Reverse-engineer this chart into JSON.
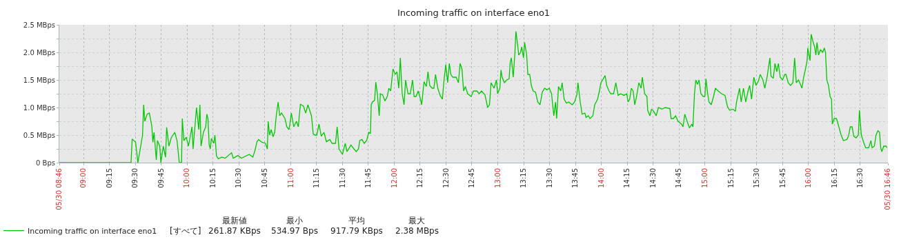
{
  "chart_data": {
    "type": "line",
    "title": "Incoming traffic on interface eno1",
    "series": [
      {
        "name": "Incoming traffic on interface eno1",
        "color": "#00c800",
        "x": [
          8.7667,
          9.459,
          9.47,
          9.503,
          9.525,
          9.548,
          9.57,
          9.581,
          9.592,
          9.614,
          9.636,
          9.659,
          9.67,
          9.681,
          9.703,
          9.714,
          9.736,
          9.747,
          9.77,
          9.792,
          9.803,
          9.825,
          9.847,
          9.881,
          9.903,
          9.925,
          9.947,
          9.954,
          9.969,
          9.992,
          10.014,
          10.047,
          10.058,
          10.091,
          10.113,
          10.124,
          10.135,
          10.158,
          10.18,
          10.191,
          10.202,
          10.213,
          10.224,
          10.235,
          10.258,
          10.269,
          10.284,
          10.302,
          10.335,
          10.368,
          10.43,
          10.446,
          10.491,
          10.524,
          10.601,
          10.635,
          10.657,
          10.675,
          10.69,
          10.723,
          10.757,
          10.775,
          10.783,
          10.797,
          10.812,
          10.83,
          10.846,
          10.861,
          10.879,
          10.894,
          10.912,
          10.945,
          10.963,
          10.985,
          11.007,
          11.03,
          11.056,
          11.074,
          11.094,
          11.123,
          11.145,
          11.167,
          11.201,
          11.218,
          11.234,
          11.252,
          11.274,
          11.296,
          11.322,
          11.345,
          11.378,
          11.4,
          11.433,
          11.449,
          11.467,
          11.5,
          11.527,
          11.544,
          11.582,
          11.611,
          11.633,
          11.655,
          11.667,
          11.689,
          11.711,
          11.733,
          11.755,
          11.771,
          11.778,
          11.789,
          11.811,
          11.822,
          11.837,
          11.855,
          11.866,
          11.888,
          11.911,
          11.933,
          11.948,
          11.966,
          11.988,
          12.01,
          12.026,
          12.044,
          12.059,
          12.077,
          12.095,
          12.11,
          12.133,
          12.155,
          12.177,
          12.192,
          12.21,
          12.232,
          12.254,
          12.265,
          12.288,
          12.31,
          12.326,
          12.343,
          12.366,
          12.383,
          12.399,
          12.421,
          12.443,
          12.465,
          12.481,
          12.498,
          12.516,
          12.532,
          12.547,
          12.565,
          12.598,
          12.62,
          12.636,
          12.654,
          12.67,
          12.687,
          12.709,
          12.743,
          12.765,
          12.798,
          12.82,
          12.843,
          12.876,
          12.902,
          12.92,
          12.935,
          12.964,
          12.987,
          12.998,
          13.02,
          13.031,
          13.042,
          13.064,
          13.086,
          13.109,
          13.12,
          13.131,
          13.149,
          13.164,
          13.175,
          13.191,
          13.202,
          13.22,
          13.231,
          13.248,
          13.259,
          13.279,
          13.29,
          13.308,
          13.324,
          13.341,
          13.364,
          13.386,
          13.408,
          13.43,
          13.452,
          13.475,
          13.497,
          13.519,
          13.541,
          13.557,
          13.568,
          13.586,
          13.608,
          13.621,
          13.641,
          13.663,
          13.685,
          13.719,
          13.741,
          13.763,
          13.774,
          13.796,
          13.814,
          13.841,
          13.852,
          13.874,
          13.89,
          13.918,
          13.936,
          13.963,
          13.981,
          13.996,
          14.018,
          14.036,
          14.052,
          14.074,
          14.092,
          14.118,
          14.14,
          14.162,
          14.185,
          14.218,
          14.245,
          14.258,
          14.273,
          14.289,
          14.307,
          14.322,
          14.34,
          14.362,
          14.384,
          14.395,
          14.418,
          14.44,
          14.447,
          14.469,
          14.484,
          14.506,
          14.529,
          14.551,
          14.584,
          14.618,
          14.662,
          14.673,
          14.695,
          14.717,
          14.74,
          14.773,
          14.788,
          14.806,
          14.828,
          14.85,
          14.873,
          14.884,
          14.899,
          14.912,
          14.928,
          14.943,
          14.961,
          14.983,
          14.999,
          15.01,
          15.023,
          15.039,
          15.061,
          15.083,
          15.101,
          15.128,
          15.161,
          15.194,
          15.217,
          15.239,
          15.272,
          15.294,
          15.305,
          15.334,
          15.35,
          15.372,
          15.394,
          15.416,
          15.432,
          15.45,
          15.472,
          15.494,
          15.516,
          15.534,
          15.56,
          15.578,
          15.6,
          15.627,
          15.638,
          15.66,
          15.676,
          15.694,
          15.709,
          15.727,
          15.749,
          15.771,
          15.782,
          15.804,
          15.826,
          15.849,
          15.866,
          15.882,
          15.904,
          15.926,
          15.937,
          15.953,
          15.971,
          15.986,
          15.993,
          16.015,
          16.026,
          16.042,
          16.059,
          16.071,
          16.082,
          16.097,
          16.115,
          16.137,
          16.153,
          16.164,
          16.177,
          16.193,
          16.208,
          16.222,
          16.23,
          16.248,
          16.27,
          16.293,
          16.315,
          16.337,
          16.37,
          16.386,
          16.403,
          16.421,
          16.437,
          16.459,
          16.481,
          16.492,
          16.51,
          16.536,
          16.552,
          16.581,
          16.603,
          16.614,
          16.636,
          16.652,
          16.67,
          16.686,
          16.697,
          16.708,
          16.726,
          16.748,
          16.759
        ],
        "values": [
          0,
          0,
          0.43,
          0.37,
          0,
          0.25,
          0.5,
          1.05,
          0.75,
          0.88,
          0.9,
          0.67,
          0.37,
          0.55,
          0.05,
          0.4,
          0.3,
          0,
          0.3,
          0.1,
          0.64,
          0.3,
          0.45,
          0.55,
          0.4,
          0,
          0,
          0.8,
          0.4,
          0.46,
          0.3,
          0.65,
          0.25,
          1.0,
          0.6,
          1.05,
          0.3,
          0.55,
          0.65,
          0.88,
          0.8,
          0.33,
          0.25,
          0.44,
          0.35,
          0.5,
          0.12,
          0.07,
          0.1,
          0.08,
          0.18,
          0.08,
          0.13,
          0.08,
          0.15,
          0.1,
          0.23,
          0.38,
          0.42,
          0.37,
          0.35,
          0.25,
          0.75,
          0.5,
          0.6,
          0.47,
          0.55,
          0.85,
          1.1,
          0.85,
          0.9,
          0.8,
          0.65,
          0.6,
          0.9,
          0.65,
          0.75,
          0.65,
          1.06,
          1.03,
          0.9,
          1.05,
          0.85,
          0.52,
          0.5,
          0.5,
          0.7,
          0.48,
          0.55,
          0.38,
          0.42,
          0.35,
          0.35,
          0.65,
          0.25,
          0.15,
          0.35,
          0.2,
          0.32,
          0.25,
          0.2,
          0.25,
          0.4,
          0.42,
          0.35,
          0.4,
          0.55,
          0.53,
          1.05,
          1.1,
          1.13,
          1.46,
          1.25,
          0.85,
          1.25,
          1.23,
          1.12,
          1.2,
          1.35,
          1.3,
          1.7,
          1.6,
          1.65,
          1.35,
          1.9,
          1.25,
          1.05,
          1.5,
          1.25,
          1.25,
          1.5,
          1.2,
          1.2,
          1.3,
          1.15,
          1.05,
          1.47,
          1.38,
          1.65,
          1.4,
          1.35,
          1.35,
          1.6,
          1.35,
          1.22,
          1.15,
          1.5,
          1.78,
          1.45,
          1.8,
          1.6,
          1.55,
          1.55,
          1.45,
          1.8,
          1.7,
          1.3,
          1.38,
          1.25,
          1.2,
          1.3,
          1.3,
          1.25,
          1.3,
          1.23,
          1.0,
          1.05,
          1.45,
          1.35,
          1.5,
          1.25,
          1.35,
          1.68,
          1.55,
          1.45,
          1.5,
          1.52,
          1.82,
          1.9,
          1.55,
          1.95,
          2.38,
          2.15,
          1.95,
          2.0,
          2.1,
          1.9,
          2.18,
          1.95,
          1.6,
          1.6,
          1.4,
          1.3,
          1.28,
          1.1,
          1.05,
          1.28,
          1.35,
          1.32,
          1.35,
          1.25,
          0.85,
          1.1,
          0.8,
          1.38,
          1.3,
          1.45,
          1.15,
          1.08,
          1.1,
          1.05,
          1.1,
          1.23,
          1.45,
          1.1,
          0.88,
          0.9,
          0.82,
          0.85,
          0.8,
          0.85,
          1.05,
          1.15,
          1.3,
          1.45,
          1.52,
          1.58,
          1.4,
          1.3,
          1.25,
          1.25,
          1.45,
          1.22,
          1.25,
          1.22,
          1.25,
          1.1,
          1.15,
          1.35,
          1.3,
          1.05,
          1.2,
          1.45,
          1.35,
          1.55,
          1.25,
          1.2,
          0.95,
          0.85,
          0.97,
          0.93,
          0.85,
          1.0,
          0.97,
          1.0,
          0.98,
          0.8,
          0.8,
          0.85,
          0.75,
          0.7,
          0.65,
          0.88,
          0.75,
          0.63,
          0.7,
          0.65,
          1.25,
          1.5,
          1.42,
          1.5,
          1.25,
          1.2,
          1.2,
          1.52,
          1.3,
          1.1,
          1.05,
          1.2,
          1.35,
          1.3,
          1.25,
          1.22,
          1.02,
          0.95,
          0.97,
          0.93,
          1.1,
          1.35,
          1.1,
          1.35,
          1.1,
          1.3,
          1.4,
          1.15,
          1.55,
          1.4,
          1.48,
          1.6,
          1.5,
          1.35,
          1.55,
          1.9,
          1.57,
          1.53,
          1.8,
          1.65,
          1.8,
          1.55,
          1.5,
          1.6,
          1.6,
          1.45,
          1.4,
          1.45,
          1.9,
          1.45,
          1.5,
          1.4,
          1.35,
          1.55,
          1.7,
          1.85,
          2.08,
          1.85,
          2.33,
          2.2,
          2.1,
          1.95,
          2.18,
          1.95,
          2.05,
          2.0,
          2.08,
          2.0,
          1.5,
          1.4,
          1.2,
          1.15,
          0.7,
          0.8,
          0.8,
          0.65,
          0.5,
          0.4,
          0.42,
          0.48,
          0.65,
          0.65,
          0.48,
          0.45,
          0.5,
          0.95,
          0.5,
          0.35,
          0.27,
          0.27,
          0.4,
          0.27,
          0.3,
          0.5,
          0.58,
          0.55,
          0.27,
          0.2,
          0.3,
          0.3,
          0.27
        ]
      }
    ],
    "xlim": [
      8.7667,
      16.7667
    ],
    "xticks": [
      {
        "value": 8.7667,
        "label": "05/30 08:46"
      },
      {
        "value": 9,
        "label": "09:00"
      },
      {
        "value": 9.25,
        "label": "09:15"
      },
      {
        "value": 9.5,
        "label": "09:30"
      },
      {
        "value": 9.75,
        "label": "09:45"
      },
      {
        "value": 10,
        "label": "10:00"
      },
      {
        "value": 10.25,
        "label": "10:15"
      },
      {
        "value": 10.5,
        "label": "10:30"
      },
      {
        "value": 10.75,
        "label": "10:45"
      },
      {
        "value": 11,
        "label": "11:00"
      },
      {
        "value": 11.25,
        "label": "11:15"
      },
      {
        "value": 11.5,
        "label": "11:30"
      },
      {
        "value": 11.75,
        "label": "11:45"
      },
      {
        "value": 12,
        "label": "12:00"
      },
      {
        "value": 12.25,
        "label": "12:15"
      },
      {
        "value": 12.5,
        "label": "12:30"
      },
      {
        "value": 12.75,
        "label": "12:45"
      },
      {
        "value": 13,
        "label": "13:00"
      },
      {
        "value": 13.25,
        "label": "13:15"
      },
      {
        "value": 13.5,
        "label": "13:30"
      },
      {
        "value": 13.75,
        "label": "13:45"
      },
      {
        "value": 14,
        "label": "14:00"
      },
      {
        "value": 14.25,
        "label": "14:15"
      },
      {
        "value": 14.5,
        "label": "14:30"
      },
      {
        "value": 14.75,
        "label": "14:45"
      },
      {
        "value": 15,
        "label": "15:00"
      },
      {
        "value": 15.25,
        "label": "15:15"
      },
      {
        "value": 15.5,
        "label": "15:30"
      },
      {
        "value": 15.75,
        "label": "15:45"
      },
      {
        "value": 16,
        "label": "16:00"
      },
      {
        "value": 16.25,
        "label": "16:15"
      },
      {
        "value": 16.5,
        "label": "16:30"
      },
      {
        "value": 16.7667,
        "label": "05/30 16:46"
      }
    ],
    "ylim": [
      0,
      2.5
    ],
    "yticks": [
      {
        "value": 0,
        "label": "0 Bps"
      },
      {
        "value": 0.25,
        "label": null
      },
      {
        "value": 0.5,
        "label": "0.5 MBps"
      },
      {
        "value": 0.75,
        "label": null
      },
      {
        "value": 1.0,
        "label": "1.0 MBps"
      },
      {
        "value": 1.25,
        "label": null
      },
      {
        "value": 1.5,
        "label": "1.5 MBps"
      },
      {
        "value": 1.75,
        "label": null
      },
      {
        "value": 2.0,
        "label": "2.0 MBps"
      },
      {
        "value": 2.25,
        "label": null
      },
      {
        "value": 2.5,
        "label": "2.5 MBps"
      }
    ],
    "grid": true,
    "legend": "bottom left",
    "line_style": "solid",
    "annotations": [
      "[すべて]",
      "最新値",
      "261.87 KBps",
      "最小",
      "534.97 Bps",
      "平均",
      "917.79 KBps",
      "最大",
      "2.38 MBps"
    ]
  }
}
